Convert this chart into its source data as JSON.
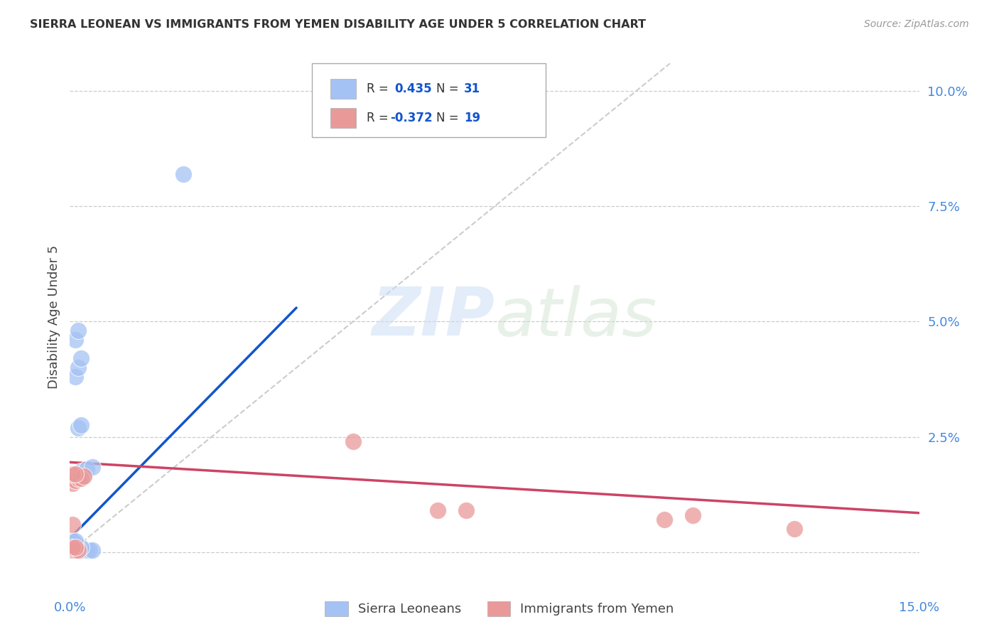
{
  "title": "SIERRA LEONEAN VS IMMIGRANTS FROM YEMEN DISABILITY AGE UNDER 5 CORRELATION CHART",
  "source": "Source: ZipAtlas.com",
  "ylabel": "Disability Age Under 5",
  "y_ticks": [
    0.0,
    0.025,
    0.05,
    0.075,
    0.1
  ],
  "y_tick_labels": [
    "",
    "2.5%",
    "5.0%",
    "7.5%",
    "10.0%"
  ],
  "x_min": 0.0,
  "x_max": 0.15,
  "y_min": -0.004,
  "y_max": 0.106,
  "watermark_zip": "ZIP",
  "watermark_atlas": "atlas",
  "blue_color": "#a4c2f4",
  "pink_color": "#ea9999",
  "blue_line_color": "#1155cc",
  "pink_line_color": "#cc4466",
  "diag_line_color": "#cccccc",
  "sierra_leoneans": [
    [
      0.0005,
      0.0005
    ],
    [
      0.001,
      0.0005
    ],
    [
      0.0015,
      0.0005
    ],
    [
      0.002,
      0.0005
    ],
    [
      0.0025,
      0.0005
    ],
    [
      0.003,
      0.0005
    ],
    [
      0.0035,
      0.0005
    ],
    [
      0.004,
      0.0005
    ],
    [
      0.0005,
      0.001
    ],
    [
      0.001,
      0.001
    ],
    [
      0.0015,
      0.001
    ],
    [
      0.002,
      0.001
    ],
    [
      0.0005,
      0.0015
    ],
    [
      0.001,
      0.0015
    ],
    [
      0.0005,
      0.002
    ],
    [
      0.001,
      0.002
    ],
    [
      0.0005,
      0.0025
    ],
    [
      0.001,
      0.0025
    ],
    [
      0.0015,
      0.017
    ],
    [
      0.002,
      0.0175
    ],
    [
      0.0025,
      0.017
    ],
    [
      0.003,
      0.018
    ],
    [
      0.004,
      0.0185
    ],
    [
      0.0015,
      0.027
    ],
    [
      0.002,
      0.0275
    ],
    [
      0.001,
      0.038
    ],
    [
      0.0015,
      0.04
    ],
    [
      0.002,
      0.042
    ],
    [
      0.001,
      0.046
    ],
    [
      0.0015,
      0.048
    ],
    [
      0.02,
      0.082
    ]
  ],
  "yemen_immigrants": [
    [
      0.0005,
      0.0005
    ],
    [
      0.001,
      0.0005
    ],
    [
      0.0015,
      0.0005
    ],
    [
      0.0005,
      0.001
    ],
    [
      0.001,
      0.001
    ],
    [
      0.0005,
      0.015
    ],
    [
      0.001,
      0.0155
    ],
    [
      0.0015,
      0.016
    ],
    [
      0.002,
      0.016
    ],
    [
      0.0025,
      0.0165
    ],
    [
      0.0005,
      0.017
    ],
    [
      0.001,
      0.017
    ],
    [
      0.0005,
      0.006
    ],
    [
      0.05,
      0.024
    ],
    [
      0.065,
      0.009
    ],
    [
      0.07,
      0.009
    ],
    [
      0.105,
      0.007
    ],
    [
      0.11,
      0.008
    ],
    [
      0.128,
      0.005
    ]
  ],
  "blue_trend_x": [
    0.0,
    0.04
  ],
  "blue_trend_y": [
    0.003,
    0.053
  ],
  "pink_trend_x": [
    0.0,
    0.15
  ],
  "pink_trend_y": [
    0.0195,
    0.0085
  ],
  "diag_trend_x": [
    0.0,
    0.106
  ],
  "diag_trend_y": [
    0.0,
    0.106
  ]
}
